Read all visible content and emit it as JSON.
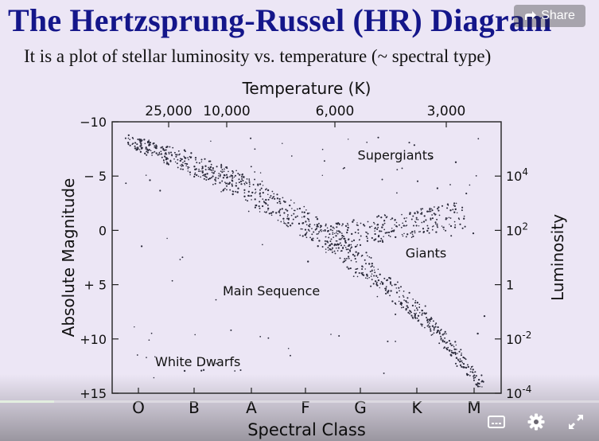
{
  "slide": {
    "title": "The Hertzsprung-Russel (HR) Diagram",
    "subtitle": "It is a plot of stellar luminosity vs. temperature (~ spectral type)"
  },
  "player": {
    "share_label": "Share",
    "progress_fraction": 0.09,
    "controls": [
      "captions-icon",
      "settings-gear-icon",
      "fullscreen-icon"
    ]
  },
  "chart_data": {
    "type": "scatter",
    "top_axis_title": "Temperature (K)",
    "top_ticks": [
      {
        "label": "25,000",
        "k": 25000
      },
      {
        "label": "10,000",
        "k": 10000
      },
      {
        "label": "6,000",
        "k": 6000
      },
      {
        "label": "3,000",
        "k": 3000
      }
    ],
    "left_axis_title": "Absolute Magnitude",
    "left_ticks": [
      {
        "label": "−10",
        "mag": -10
      },
      {
        "label": "− 5",
        "mag": -5
      },
      {
        "label": "0",
        "mag": 0
      },
      {
        "label": "+ 5",
        "mag": 5
      },
      {
        "label": "+10",
        "mag": 10
      },
      {
        "label": "+15",
        "mag": 15
      }
    ],
    "ylim": [
      -10,
      15
    ],
    "right_axis_title": "Luminosity",
    "right_ticks": [
      {
        "base": "10",
        "exp": "4",
        "mag": -5
      },
      {
        "base": "10",
        "exp": "2",
        "mag": 0
      },
      {
        "base": "1",
        "exp": "",
        "mag": 5
      },
      {
        "base": "10",
        "exp": "-2",
        "mag": 10
      },
      {
        "base": "10",
        "exp": "-4",
        "mag": 15
      }
    ],
    "bottom_axis_title": "Spectral Class",
    "spectral_classes": [
      "O",
      "B",
      "A",
      "F",
      "G",
      "K",
      "M"
    ],
    "regions": [
      {
        "label": "Supergiants",
        "class_pos": 3.95,
        "mag": -6.5
      },
      {
        "label": "Giants",
        "class_pos": 4.8,
        "mag": 2.5
      },
      {
        "label": "Main Sequence",
        "class_pos": 1.5,
        "mag": 6
      },
      {
        "label": "White Dwarfs",
        "class_pos": 0.3,
        "mag": 12.5
      }
    ],
    "grid": false
  }
}
